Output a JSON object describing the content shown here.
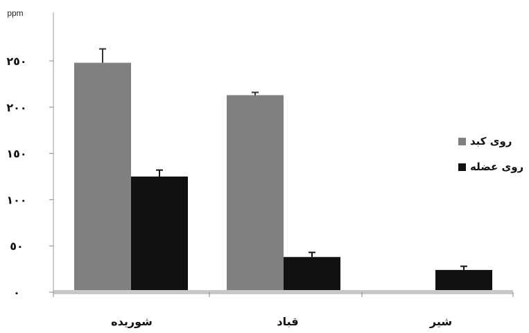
{
  "chart_data": {
    "type": "bar",
    "title": "",
    "ylabel": "ppm",
    "xlabel": "",
    "categories": [
      "شوریده",
      "قباد",
      "شیر"
    ],
    "ylim": [
      0,
      300
    ],
    "yticks": [
      0,
      50,
      100,
      150,
      200,
      250
    ],
    "ytick_labels": [
      "٠",
      "٥٠",
      "١٠٠",
      "١٥٠",
      "٢٠٠",
      "٢٥٠"
    ],
    "series": [
      {
        "name": "روی کبد",
        "values": [
          248,
          213,
          0
        ],
        "errors": [
          15,
          3,
          0
        ],
        "color": "#808080"
      },
      {
        "name": "روی عضله",
        "values": [
          125,
          38,
          24
        ],
        "errors": [
          7,
          5,
          4
        ],
        "color": "#111111"
      }
    ],
    "grid": false,
    "legend_position": "right"
  }
}
